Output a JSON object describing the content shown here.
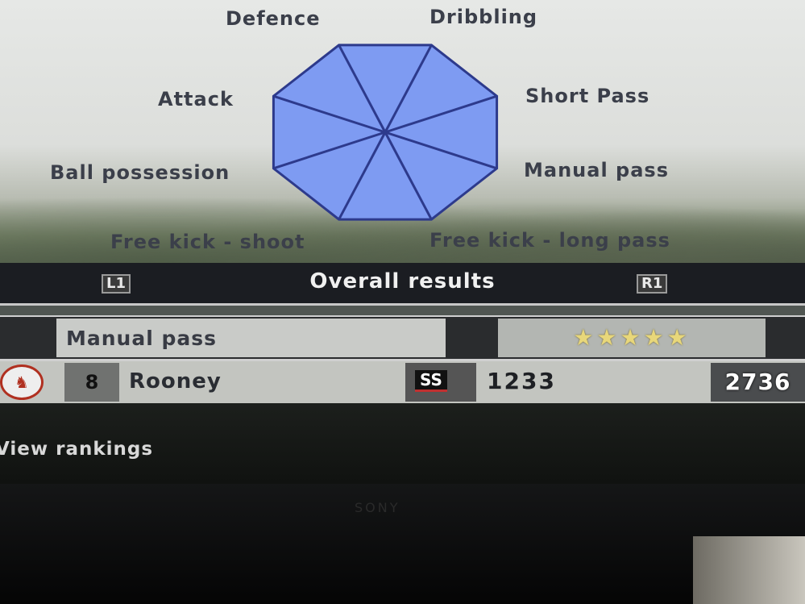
{
  "radar": {
    "axes": [
      "Defence",
      "Dribbling",
      "Short Pass",
      "Manual pass",
      "Free kick - long pass",
      "Free kick - shoot",
      "Ball possession",
      "Attack"
    ],
    "values": [
      1,
      1,
      1,
      1,
      1,
      1,
      1,
      1
    ],
    "fill_color": "#7e9bf2",
    "line_color": "#2d3a8c"
  },
  "header": {
    "left_button": "L1",
    "title": "Overall results",
    "right_button": "R1"
  },
  "category": {
    "label": "Manual pass",
    "stars": 5,
    "star_glyphs": "★★★★★"
  },
  "player": {
    "number": "8",
    "name": "Rooney",
    "rank_badge": "SS",
    "points": "1233",
    "score": "2736"
  },
  "footer": {
    "view_rankings": "View rankings"
  },
  "tv": {
    "brand": "SONY"
  }
}
